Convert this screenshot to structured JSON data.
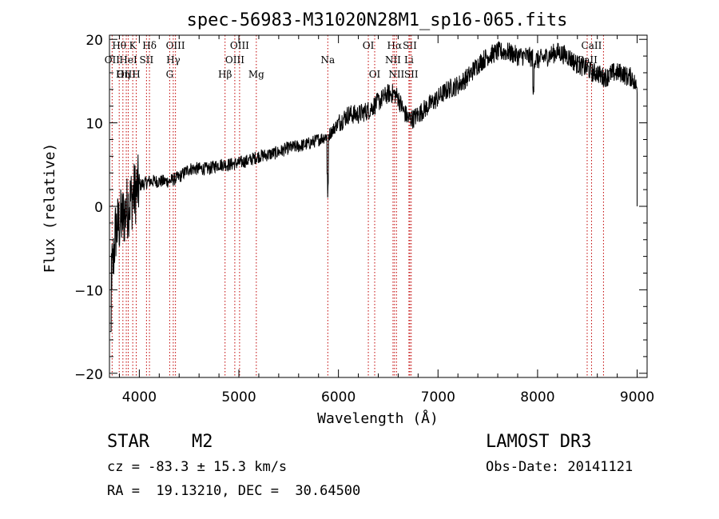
{
  "chart_data": {
    "type": "line",
    "title": "spec-56983-M31020N28M1_sp16-065.fits",
    "xlabel": "Wavelength (Å)",
    "ylabel": "Flux (relative)",
    "xlim": [
      3700,
      9100
    ],
    "ylim": [
      -20.5,
      20.5
    ],
    "xticks": [
      4000,
      5000,
      6000,
      7000,
      8000,
      9000
    ],
    "yticks": [
      -20,
      -10,
      0,
      10,
      20
    ],
    "xtick_labels": [
      "4000",
      "5000",
      "6000",
      "7000",
      "8000",
      "9000"
    ],
    "ytick_labels": [
      "−20",
      "−10",
      "0",
      "10",
      "20"
    ],
    "spectrum_anchor_points": {
      "wavelength": [
        3700,
        3730,
        3760,
        3800,
        3850,
        3900,
        3950,
        4000,
        4100,
        4200,
        4300,
        4400,
        4500,
        4600,
        4700,
        4800,
        4900,
        5000,
        5100,
        5200,
        5300,
        5400,
        5500,
        5600,
        5700,
        5800,
        5900,
        6000,
        6100,
        6200,
        6300,
        6400,
        6500,
        6560,
        6600,
        6650,
        6700,
        6750,
        6800,
        6900,
        7000,
        7100,
        7200,
        7300,
        7400,
        7500,
        7600,
        7700,
        7800,
        7900,
        8000,
        8100,
        8200,
        8300,
        8400,
        8500,
        8550,
        8600,
        8650,
        8700,
        8750,
        8800,
        8850,
        8900,
        8950,
        9000
      ],
      "flux": [
        -5,
        -8,
        -3,
        -2,
        -1,
        0.5,
        1.5,
        2.5,
        3,
        3,
        3,
        3.5,
        4.5,
        4.5,
        4.5,
        5,
        5,
        5.2,
        5.5,
        6,
        6.2,
        6.5,
        7,
        7.2,
        7.5,
        8,
        8.5,
        10,
        11,
        11,
        11.5,
        12.5,
        13.5,
        13.5,
        13,
        11.5,
        10.5,
        10.5,
        11,
        12,
        13,
        14,
        14.5,
        15.5,
        17,
        18,
        18.5,
        18.5,
        18,
        18,
        17.5,
        18,
        18.5,
        18,
        17,
        16.5,
        16,
        16,
        15.5,
        15.5,
        16,
        16,
        16,
        15.5,
        15.5,
        14
      ]
    },
    "spectral_lines": [
      {
        "label": "Hθ",
        "wavelength": 3798,
        "row": 1
      },
      {
        "label": "OII",
        "wavelength": 3727,
        "row": 2
      },
      {
        "label": "OIII",
        "wavelength": 3869,
        "row": 3
      },
      {
        "label": "K",
        "wavelength": 3934,
        "row": 1
      },
      {
        "label": "HeI",
        "wavelength": 3889,
        "row": 2
      },
      {
        "label": "Hη",
        "wavelength": 3835,
        "row": 3
      },
      {
        "label": "Hδ",
        "wavelength": 4102,
        "row": 1
      },
      {
        "label": "SII",
        "wavelength": 4072,
        "row": 2
      },
      {
        "label": "H",
        "wavelength": 3969,
        "row": 3
      },
      {
        "label": "OIII",
        "wavelength": 4363,
        "row": 1
      },
      {
        "label": "Hγ",
        "wavelength": 4341,
        "row": 2
      },
      {
        "label": "G",
        "wavelength": 4305,
        "row": 3
      },
      {
        "label": "OIII",
        "wavelength": 5007,
        "row": 1
      },
      {
        "label": "OIII",
        "wavelength": 4959,
        "row": 2
      },
      {
        "label": "Hβ",
        "wavelength": 4861,
        "row": 3
      },
      {
        "label": "Mg",
        "wavelength": 5175,
        "row": 3
      },
      {
        "label": "Na",
        "wavelength": 5893,
        "row": 2
      },
      {
        "label": "OI",
        "wavelength": 6300,
        "row": 1
      },
      {
        "label": "OI",
        "wavelength": 6364,
        "row": 3
      },
      {
        "label": "Hα",
        "wavelength": 6563,
        "row": 1
      },
      {
        "label": "NII",
        "wavelength": 6548,
        "row": 2
      },
      {
        "label": "NII",
        "wavelength": 6583,
        "row": 3
      },
      {
        "label": "SII",
        "wavelength": 6717,
        "row": 1
      },
      {
        "label": "Li",
        "wavelength": 6708,
        "row": 2
      },
      {
        "label": "SII",
        "wavelength": 6731,
        "row": 3
      },
      {
        "label": "CaII",
        "wavelength": 8542,
        "row": 1
      },
      {
        "label": "CaII",
        "wavelength": 8498,
        "row": 2
      },
      {
        "label": "CaII",
        "wavelength": 8662,
        "row": 3
      }
    ]
  },
  "info": {
    "class": "STAR",
    "subclass": "M2",
    "survey": "LAMOST DR3",
    "redshift": "cz = -83.3 ± 15.3 km/s",
    "obs_date": "Obs-Date: 20141121",
    "coords": "RA =  19.13210, DEC =  30.64500"
  }
}
